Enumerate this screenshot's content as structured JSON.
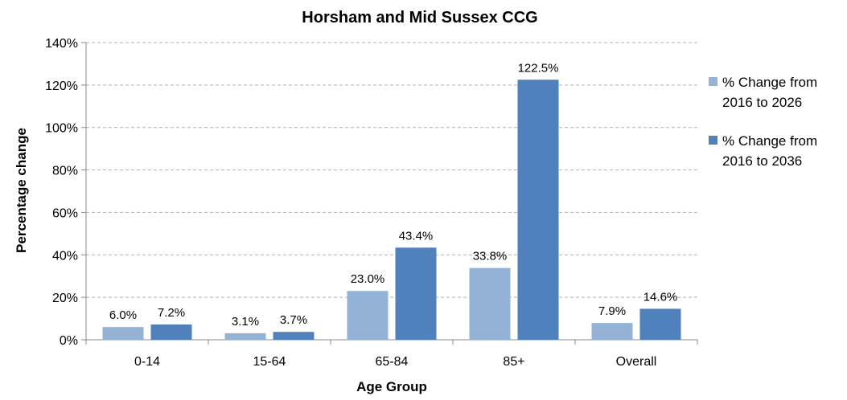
{
  "chart_data": {
    "type": "bar",
    "title": "Horsham and Mid Sussex CCG",
    "xlabel": "Age Group",
    "ylabel": "Percentage change",
    "categories": [
      "0-14",
      "15-64",
      "65-84",
      "85+",
      "Overall"
    ],
    "series": [
      {
        "name": "% Change from 2016 to 2026",
        "values": [
          6.0,
          3.1,
          23.0,
          33.8,
          7.9
        ],
        "labels": [
          "6.0%",
          "3.1%",
          "23.0%",
          "33.8%",
          "7.9%"
        ],
        "legend_lines": [
          "% Change from",
          "2016 to 2026"
        ],
        "color": "#95b3d7"
      },
      {
        "name": "% Change from 2016 to 2036",
        "values": [
          7.2,
          3.7,
          43.4,
          122.5,
          14.6
        ],
        "labels": [
          "7.2%",
          "3.7%",
          "43.4%",
          "122.5%",
          "14.6%"
        ],
        "legend_lines": [
          "% Change from",
          "2016 to 2036"
        ],
        "color": "#4f81bd"
      }
    ],
    "ylim": [
      0,
      140
    ],
    "yticks": [
      0,
      20,
      40,
      60,
      80,
      100,
      120,
      140
    ],
    "ytick_labels": [
      "0%",
      "20%",
      "40%",
      "60%",
      "80%",
      "100%",
      "120%",
      "140%"
    ],
    "grid": true,
    "legend_position": "right"
  }
}
